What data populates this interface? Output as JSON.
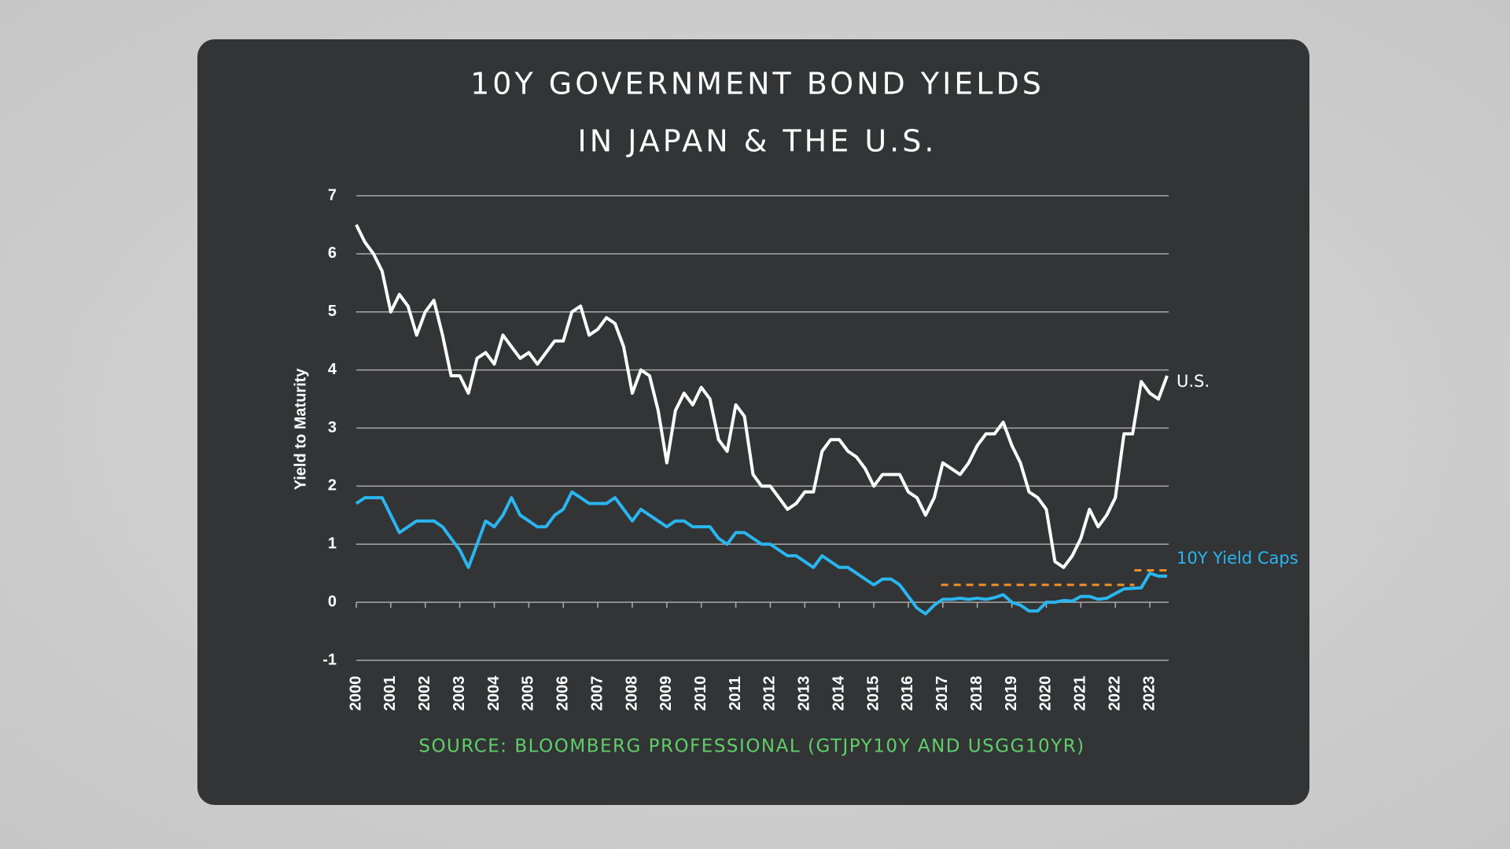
{
  "chart_data": {
    "type": "line",
    "title": [
      "10Y GOVERNMENT BOND YIELDS",
      "IN JAPAN & THE U.S."
    ],
    "y_label": "Yield to Maturity",
    "source": "SOURCE: BLOOMBERG PROFESSIONAL (GTJPY10Y AND USGG10YR)",
    "xlim": [
      2000,
      2023.5
    ],
    "xticks": [
      2000,
      2001,
      2002,
      2003,
      2004,
      2005,
      2006,
      2007,
      2008,
      2009,
      2010,
      2011,
      2012,
      2013,
      2014,
      2015,
      2016,
      2017,
      2018,
      2019,
      2020,
      2021,
      2022,
      2023
    ],
    "ylim": [
      -1,
      7
    ],
    "yticks": [
      -1,
      0,
      1,
      2,
      3,
      4,
      5,
      6,
      7
    ],
    "grid": true,
    "x": [
      2000,
      2000.25,
      2000.5,
      2000.75,
      2001,
      2001.25,
      2001.5,
      2001.75,
      2002,
      2002.25,
      2002.5,
      2002.75,
      2003,
      2003.25,
      2003.5,
      2003.75,
      2004,
      2004.25,
      2004.5,
      2004.75,
      2005,
      2005.25,
      2005.5,
      2005.75,
      2006,
      2006.25,
      2006.5,
      2006.75,
      2007,
      2007.25,
      2007.5,
      2007.75,
      2008,
      2008.25,
      2008.5,
      2008.75,
      2009,
      2009.25,
      2009.5,
      2009.75,
      2010,
      2010.25,
      2010.5,
      2010.75,
      2011,
      2011.25,
      2011.5,
      2011.75,
      2012,
      2012.25,
      2012.5,
      2012.75,
      2013,
      2013.25,
      2013.5,
      2013.75,
      2014,
      2014.25,
      2014.5,
      2014.75,
      2015,
      2015.25,
      2015.5,
      2015.75,
      2016,
      2016.25,
      2016.5,
      2016.75,
      2017,
      2017.25,
      2017.5,
      2017.75,
      2018,
      2018.25,
      2018.5,
      2018.75,
      2019,
      2019.25,
      2019.5,
      2019.75,
      2020,
      2020.25,
      2020.5,
      2020.75,
      2021,
      2021.25,
      2021.5,
      2021.75,
      2022,
      2022.25,
      2022.5,
      2022.75,
      2023,
      2023.25,
      2023.5
    ],
    "series": [
      {
        "name": "U.S.",
        "color": "#ffffff",
        "values": [
          6.5,
          6.2,
          6.0,
          5.7,
          5.0,
          5.3,
          5.1,
          4.6,
          5.0,
          5.2,
          4.6,
          3.9,
          3.9,
          3.6,
          4.2,
          4.3,
          4.1,
          4.6,
          4.4,
          4.2,
          4.3,
          4.1,
          4.3,
          4.5,
          4.5,
          5.0,
          5.1,
          4.6,
          4.7,
          4.9,
          4.8,
          4.4,
          3.6,
          4.0,
          3.9,
          3.3,
          2.4,
          3.3,
          3.6,
          3.4,
          3.7,
          3.5,
          2.8,
          2.6,
          3.4,
          3.2,
          2.2,
          2.0,
          2.0,
          1.8,
          1.6,
          1.7,
          1.9,
          1.9,
          2.6,
          2.8,
          2.8,
          2.6,
          2.5,
          2.3,
          2.0,
          2.2,
          2.2,
          2.2,
          1.9,
          1.8,
          1.5,
          1.8,
          2.4,
          2.3,
          2.2,
          2.4,
          2.7,
          2.9,
          2.9,
          3.1,
          2.7,
          2.4,
          1.9,
          1.8,
          1.6,
          0.7,
          0.6,
          0.8,
          1.1,
          1.6,
          1.3,
          1.5,
          1.8,
          2.9,
          2.9,
          3.8,
          3.6,
          3.5,
          3.9
        ]
      },
      {
        "name": "10Y Yield Caps",
        "color": "#29b6f0",
        "values": [
          1.7,
          1.8,
          1.8,
          1.8,
          1.5,
          1.2,
          1.3,
          1.4,
          1.4,
          1.4,
          1.3,
          1.1,
          0.9,
          0.6,
          1.0,
          1.4,
          1.3,
          1.5,
          1.8,
          1.5,
          1.4,
          1.3,
          1.3,
          1.5,
          1.6,
          1.9,
          1.8,
          1.7,
          1.7,
          1.7,
          1.8,
          1.6,
          1.4,
          1.6,
          1.5,
          1.4,
          1.3,
          1.4,
          1.4,
          1.3,
          1.3,
          1.3,
          1.1,
          1.0,
          1.2,
          1.2,
          1.1,
          1.0,
          1.0,
          0.9,
          0.8,
          0.8,
          0.7,
          0.6,
          0.8,
          0.7,
          0.6,
          0.6,
          0.5,
          0.4,
          0.3,
          0.4,
          0.4,
          0.3,
          0.1,
          -0.1,
          -0.2,
          -0.05,
          0.05,
          0.05,
          0.07,
          0.05,
          0.07,
          0.05,
          0.08,
          0.13,
          0.0,
          -0.05,
          -0.15,
          -0.15,
          0.0,
          0.0,
          0.03,
          0.02,
          0.1,
          0.1,
          0.05,
          0.07,
          0.15,
          0.23,
          0.24,
          0.25,
          0.5,
          0.45,
          0.45
        ]
      }
    ],
    "cap_lines": {
      "color": "#f0902a",
      "segments": [
        {
          "x": [
            2016.95,
            2022.55
          ],
          "value": 0.3
        },
        {
          "x": [
            2022.55,
            2023.5
          ],
          "value": 0.55
        }
      ]
    }
  }
}
